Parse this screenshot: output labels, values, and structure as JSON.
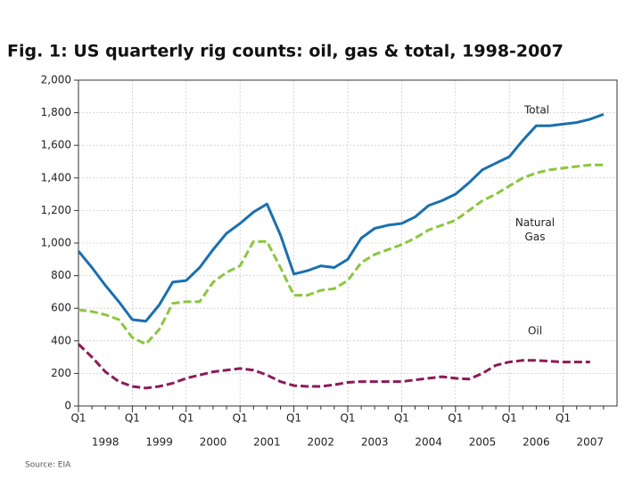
{
  "chart_data": {
    "type": "line",
    "title": "Fig. 1: US quarterly rig counts: oil, gas & total, 1998-2007",
    "source": "Source: EIA",
    "categories": [
      "Q1",
      null,
      null,
      null,
      "Q1",
      null,
      null,
      null,
      "Q1",
      null,
      null,
      null,
      "Q1",
      null,
      null,
      null,
      "Q1",
      null,
      null,
      null,
      "Q1",
      null,
      null,
      null,
      "Q1",
      null,
      null,
      null,
      "Q1",
      null,
      null,
      null,
      "Q1",
      null,
      null,
      null,
      "Q1",
      null,
      null,
      null
    ],
    "years": [
      "1998",
      "1999",
      "2000",
      "2001",
      "2002",
      "2003",
      "2004",
      "2005",
      "2006",
      "2007"
    ],
    "series": [
      {
        "name": "Total",
        "color": "#1a6fb0",
        "dashed": false,
        "values": [
          950,
          850,
          740,
          640,
          530,
          520,
          620,
          760,
          770,
          850,
          960,
          1060,
          1120,
          1190,
          1240,
          1050,
          810,
          830,
          860,
          850,
          900,
          1030,
          1090,
          1110,
          1120,
          1160,
          1230,
          1260,
          1300,
          1370,
          1450,
          1490,
          1530,
          1630,
          1720,
          1720,
          1730,
          1740,
          1760,
          1790
        ]
      },
      {
        "name": "Natural Gas",
        "color": "#8cc63f",
        "dashed": true,
        "values": [
          590,
          580,
          560,
          530,
          420,
          380,
          470,
          630,
          640,
          640,
          760,
          820,
          860,
          1010,
          1010,
          850,
          680,
          680,
          710,
          720,
          770,
          880,
          930,
          960,
          990,
          1030,
          1080,
          1110,
          1140,
          1200,
          1260,
          1300,
          1350,
          1400,
          1430,
          1450,
          1460,
          1470,
          1480,
          1480
        ]
      },
      {
        "name": "Oil",
        "color": "#8b1a5a",
        "dashed": true,
        "values": [
          380,
          300,
          210,
          150,
          120,
          110,
          120,
          140,
          170,
          190,
          210,
          220,
          230,
          220,
          190,
          150,
          125,
          120,
          120,
          130,
          145,
          150,
          150,
          150,
          150,
          160,
          170,
          180,
          170,
          165,
          200,
          250,
          270,
          280,
          280,
          275,
          270,
          270,
          270,
          null
        ]
      }
    ],
    "ylim": [
      0,
      2000
    ],
    "yticks": [
      0,
      200,
      400,
      600,
      800,
      {
        "value": 1000,
        "label": "1,000"
      },
      {
        "value": 1200,
        "label": "1,200"
      },
      {
        "value": 1400,
        "label": "1,400"
      },
      {
        "value": 1600,
        "label": "1,600"
      },
      {
        "value": 1800,
        "label": "1,800"
      },
      {
        "value": 2000,
        "label": "2,000"
      }
    ],
    "grid": true
  }
}
